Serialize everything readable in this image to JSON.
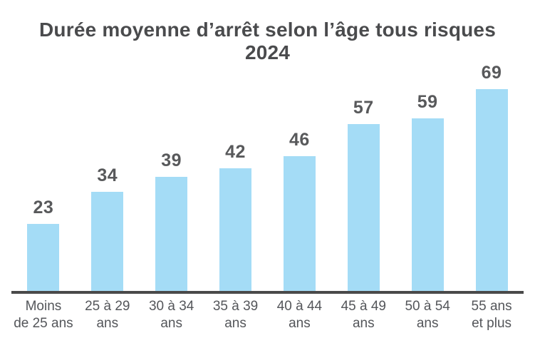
{
  "chart_data": {
    "type": "bar",
    "title": "Durée moyenne d’arrêt selon l’âge tous risques 2024",
    "title_lines": [
      "Durée moyenne d’arrêt selon l’âge tous risques",
      "2024"
    ],
    "categories": [
      "Moins de 25 ans",
      "25 à 29 ans",
      "30 à 34 ans",
      "35 à 39 ans",
      "40 à 44 ans",
      "45 à 49 ans",
      "50 à 54 ans",
      "55 ans et plus"
    ],
    "category_lines": [
      [
        "Moins",
        "de 25 ans"
      ],
      [
        "25 à 29",
        "ans"
      ],
      [
        "30 à 34",
        "ans"
      ],
      [
        "35 à 39",
        "ans"
      ],
      [
        "40 à 44",
        "ans"
      ],
      [
        "45 à 49",
        "ans"
      ],
      [
        "50 à 54",
        "ans"
      ],
      [
        "55 ans",
        "et plus"
      ]
    ],
    "values": [
      23,
      34,
      39,
      42,
      46,
      57,
      59,
      69
    ],
    "value_labels": [
      "23",
      "34",
      "39",
      "42",
      "46",
      "57",
      "59",
      "69"
    ],
    "xlabel": "",
    "ylabel": "",
    "ylim": [
      0,
      72
    ],
    "grid": false,
    "legend": null,
    "bar_value_labels_position": "above",
    "colors": {
      "bar": "#A4DCF6",
      "value_label": "#58595B",
      "title": "#4A4B4D",
      "category_label": "#54565A",
      "axis_line": "#4A4A4A",
      "background": "#FFFFFF"
    }
  }
}
